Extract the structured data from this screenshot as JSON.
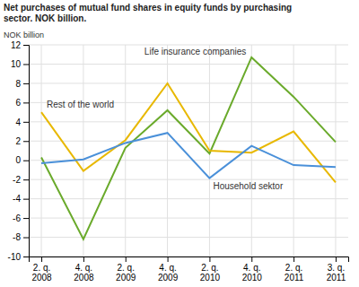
{
  "chart_data": {
    "type": "line",
    "title": "Net purchases of mutual fund shares in equity funds by purchasing\nsector. NOK billion.",
    "ylabel": "NOK billion",
    "categories": [
      "2. q.\n2008",
      "4. q.\n2008",
      "2. q.\n2009",
      "4. q.\n2009",
      "2. q.\n2010",
      "4. q.\n2010",
      "2. q.\n2011",
      "3. q.\n2011"
    ],
    "series": [
      {
        "name": "Life insurance companies",
        "color": "#6aaa2b",
        "values": [
          0.3,
          -8.2,
          1.3,
          5.2,
          0.7,
          10.7,
          6.6,
          1.9
        ]
      },
      {
        "name": "Rest of the world",
        "color": "#e8b800",
        "values": [
          5.0,
          -1.1,
          2.1,
          8.0,
          1.0,
          0.8,
          3.0,
          -2.3
        ]
      },
      {
        "name": "Household sektor",
        "color": "#4a90d9",
        "values": [
          -0.3,
          0.1,
          1.8,
          2.85,
          -1.85,
          1.5,
          -0.5,
          -0.7
        ]
      }
    ],
    "ylim": [
      -10,
      12
    ],
    "yticks": [
      -10,
      -8,
      -6,
      -4,
      -2,
      0,
      2,
      4,
      6,
      8,
      10,
      12
    ],
    "grid": true
  }
}
